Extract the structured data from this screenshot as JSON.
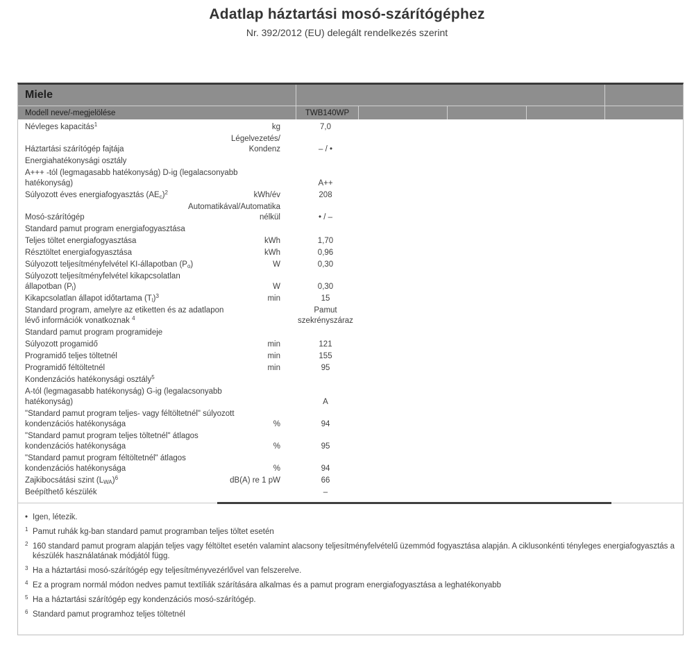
{
  "page": {
    "title": "Adatlap háztartási mosó-szárítógéphez",
    "subtitle": "Nr. 392/2012 (EU) delegált rendelkezés szerint"
  },
  "colors": {
    "header_bg": "#8e8e8e",
    "text": "#3f3f3f",
    "top_border": "#3a3a3a",
    "light_border": "#c6c6c6"
  },
  "table": {
    "brand": "Miele",
    "model_label": "Modell neve/-megjelölése",
    "model_value": "TWB140WP",
    "rows": [
      {
        "label": [
          "Névleges kapacitás",
          {
            "sup": "1"
          }
        ],
        "unit": "kg",
        "value": "7,0"
      },
      {
        "label": [
          "Háztartási szárítógép fajtája"
        ],
        "unit": "Légelvezetés/\nKondenz",
        "value": "– / •",
        "tall": true
      },
      {
        "label": [
          "Energiahatékonysági osztály"
        ]
      },
      {
        "label": [
          "A+++ -tól (legmagasabb hatékonyság) D-ig (legalacsonyabb\nhatékonyság)"
        ],
        "value": "A++"
      },
      {
        "label": [
          "Súlyozott éves energiafogyasztás (AE",
          {
            "sub": "c"
          },
          ")",
          {
            "sup": "2"
          }
        ],
        "unit": "kWh/év",
        "value": "208"
      },
      {
        "label": [
          "Mosó-szárítógép"
        ],
        "unit": "Automatikával/Automatika\nnélkül",
        "value": "• / –",
        "tall": true
      },
      {
        "label": [
          "Standard pamut program energiafogyasztása"
        ]
      },
      {
        "label": [
          "Teljes töltet energiafogyasztása"
        ],
        "unit": "kWh",
        "value": "1,70"
      },
      {
        "label": [
          "Résztöltet energiafogyasztása"
        ],
        "unit": "kWh",
        "value": "0,96"
      },
      {
        "label": [
          "Súlyozott teljesítményfelvétel KI-állapotban (P",
          {
            "sub": "o"
          },
          ")"
        ],
        "unit": "W",
        "value": "0,30"
      },
      {
        "label": [
          "Súlyozott teljesítményfelvétel kikapcsolatlan\nállapotban (P",
          {
            "sub": "l"
          },
          ")"
        ],
        "unit": "W",
        "value": "0,30"
      },
      {
        "label": [
          "Kikapcsolatlan állapot időtartama (T",
          {
            "sub": "l"
          },
          ")",
          {
            "sup": "3"
          }
        ],
        "unit": "min",
        "value": "15"
      },
      {
        "label": [
          "Standard program, amelyre az etiketten és az adatlapon\nlévő információk vonatkoznak ",
          {
            "sup": "4"
          }
        ],
        "value": "Pamut\nszekrényszáraz"
      },
      {
        "label": [
          "Standard pamut program programideje"
        ]
      },
      {
        "label": [
          "Súlyozott progamidő"
        ],
        "unit": "min",
        "value": "121"
      },
      {
        "label": [
          "Programidő teljes töltetnél"
        ],
        "unit": "min",
        "value": "155"
      },
      {
        "label": [
          "Programidő féltöltetnél"
        ],
        "unit": "min",
        "value": "95"
      },
      {
        "label": [
          "Kondenzációs hatékonysági osztály",
          {
            "sup": "5"
          }
        ]
      },
      {
        "label": [
          "A-tól (legmagasabb hatékonyság) G-ig (legalacsonyabb\nhatékonyság)"
        ],
        "value": "A"
      },
      {
        "label": [
          "\"Standard pamut program teljes- vagy féltöltetnél\" súlyozott\nkondenzációs hatékonysága"
        ],
        "unit": "%",
        "value": "94"
      },
      {
        "label": [
          "\"Standard pamut program teljes töltetnél\" átlagos\nkondenzációs hatékonysága"
        ],
        "unit": "%",
        "value": "95"
      },
      {
        "label": [
          "\"Standard pamut program féltöltetnél\" átlagos\nkondenzációs hatékonysága"
        ],
        "unit": "%",
        "value": "94"
      },
      {
        "label": [
          "Zajkibocsátási szint (L",
          {
            "sub": "WA"
          },
          ")",
          {
            "sup": "6"
          }
        ],
        "unit": "dB(A) re 1 pW",
        "value": "66"
      },
      {
        "label": [
          "Beépíthető készülék"
        ],
        "value": "–"
      }
    ],
    "footnotes": [
      {
        "marker": "•",
        "superscript": false,
        "text": "Igen, létezik."
      },
      {
        "marker": "1",
        "superscript": true,
        "text": "Pamut ruhák kg-ban standard pamut programban teljes töltet esetén"
      },
      {
        "marker": "2",
        "superscript": true,
        "text": "160 standard pamut program alapján teljes vagy féltöltet esetén valamint alacsony teljesítményfelvételű üzemmód fogyasztása alapján. A ciklusonkénti tényleges energiafogyasztás a készülék használatának módjától függ."
      },
      {
        "marker": "3",
        "superscript": true,
        "text": "Ha a háztartási mosó-szárítógép egy teljesítményvezérlővel van felszerelve."
      },
      {
        "marker": "4",
        "superscript": true,
        "text": "Ez a program normál módon nedves pamut textíliák szárítására alkalmas és a pamut program energiafogyasztása a leghatékonyabb"
      },
      {
        "marker": "5",
        "superscript": true,
        "text": "Ha a háztartási szárítógép egy kondenzációs mosó-szárítógép."
      },
      {
        "marker": "6",
        "superscript": true,
        "text": "Standard pamut programhoz teljes töltetnél"
      }
    ]
  }
}
